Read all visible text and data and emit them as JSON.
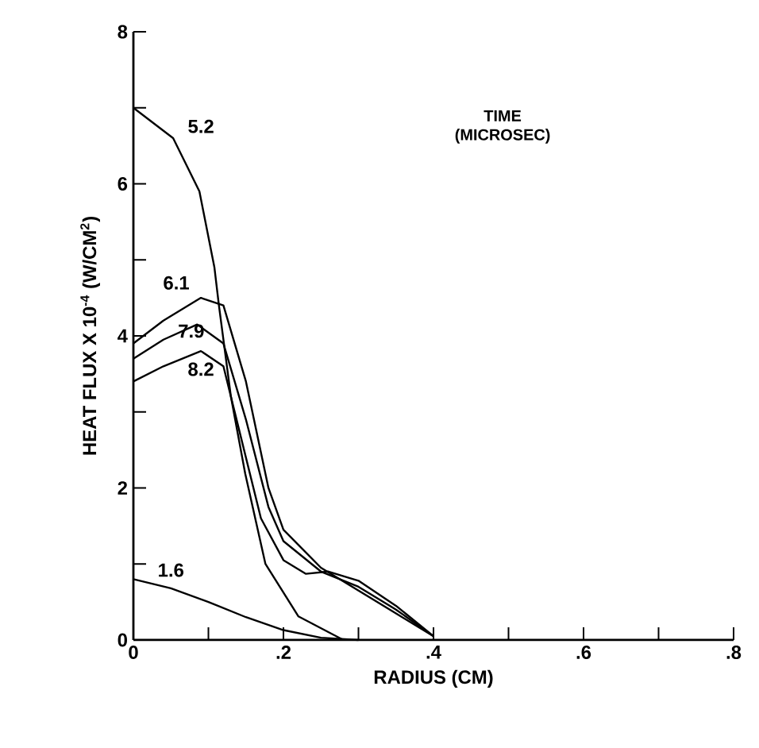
{
  "chart_data": {
    "type": "line",
    "xlabel": "RADIUS (CM)",
    "ylabel": "HEAT FLUX X 10$^{-4}$ (W/CM$^{2}$)",
    "annotations": [
      "TIME (MICROSEC)"
    ],
    "xlim": [
      0,
      0.8
    ],
    "ylim": [
      0,
      8
    ],
    "xticks": [
      0,
      {
        "value": 0.1,
        "label": null
      },
      {
        "value": 0.2,
        "label": ".2"
      },
      {
        "value": 0.3,
        "label": null
      },
      {
        "value": 0.4,
        "label": ".4"
      },
      {
        "value": 0.5,
        "label": null
      },
      {
        "value": 0.6,
        "label": ".6"
      },
      {
        "value": 0.7,
        "label": null
      },
      {
        "value": 0.8,
        "label": ".8"
      }
    ],
    "yticks": [
      0,
      {
        "value": 1,
        "label": null
      },
      2,
      {
        "value": 3,
        "label": null
      },
      4,
      {
        "value": 5,
        "label": null
      },
      6,
      {
        "value": 7,
        "label": null
      },
      8
    ],
    "grid": false,
    "legend": false,
    "marker": "none",
    "line_style": "solid",
    "series": [
      {
        "name": "5.2",
        "color": "#000000",
        "x": [
          0,
          0.053,
          0.088,
          0.108,
          0.114,
          0.13,
          0.149,
          0.176,
          0.22,
          0.28
        ],
        "values": [
          7.0,
          6.6,
          5.9,
          4.9,
          4.4,
          3.2,
          2.19,
          1.0,
          0.31,
          0
        ]
      },
      {
        "name": "6.1",
        "color": "#000000",
        "x": [
          0,
          0.04,
          0.09,
          0.12,
          0.15,
          0.18,
          0.2,
          0.25,
          0.3,
          0.35,
          0.4
        ],
        "values": [
          3.9,
          4.2,
          4.5,
          4.4,
          3.4,
          2.0,
          1.45,
          0.95,
          0.65,
          0.35,
          0.05
        ]
      },
      {
        "name": "7.9",
        "color": "#000000",
        "x": [
          0,
          0.04,
          0.085,
          0.12,
          0.15,
          0.18,
          0.2,
          0.25,
          0.3,
          0.35,
          0.4
        ],
        "values": [
          3.7,
          3.95,
          4.15,
          3.9,
          2.9,
          1.75,
          1.3,
          0.9,
          0.7,
          0.4,
          0.05
        ]
      },
      {
        "name": "8.2",
        "color": "#000000",
        "x": [
          0,
          0.04,
          0.09,
          0.12,
          0.14,
          0.17,
          0.2,
          0.23,
          0.26,
          0.3,
          0.35,
          0.4
        ],
        "values": [
          3.4,
          3.6,
          3.8,
          3.6,
          2.8,
          1.6,
          1.05,
          0.87,
          0.9,
          0.78,
          0.45,
          0.05
        ]
      },
      {
        "name": "1.6",
        "color": "#000000",
        "x": [
          0,
          0.05,
          0.1,
          0.15,
          0.2,
          0.25,
          0.3
        ],
        "values": [
          0.8,
          0.68,
          0.5,
          0.3,
          0.13,
          0.03,
          0
        ]
      }
    ]
  }
}
